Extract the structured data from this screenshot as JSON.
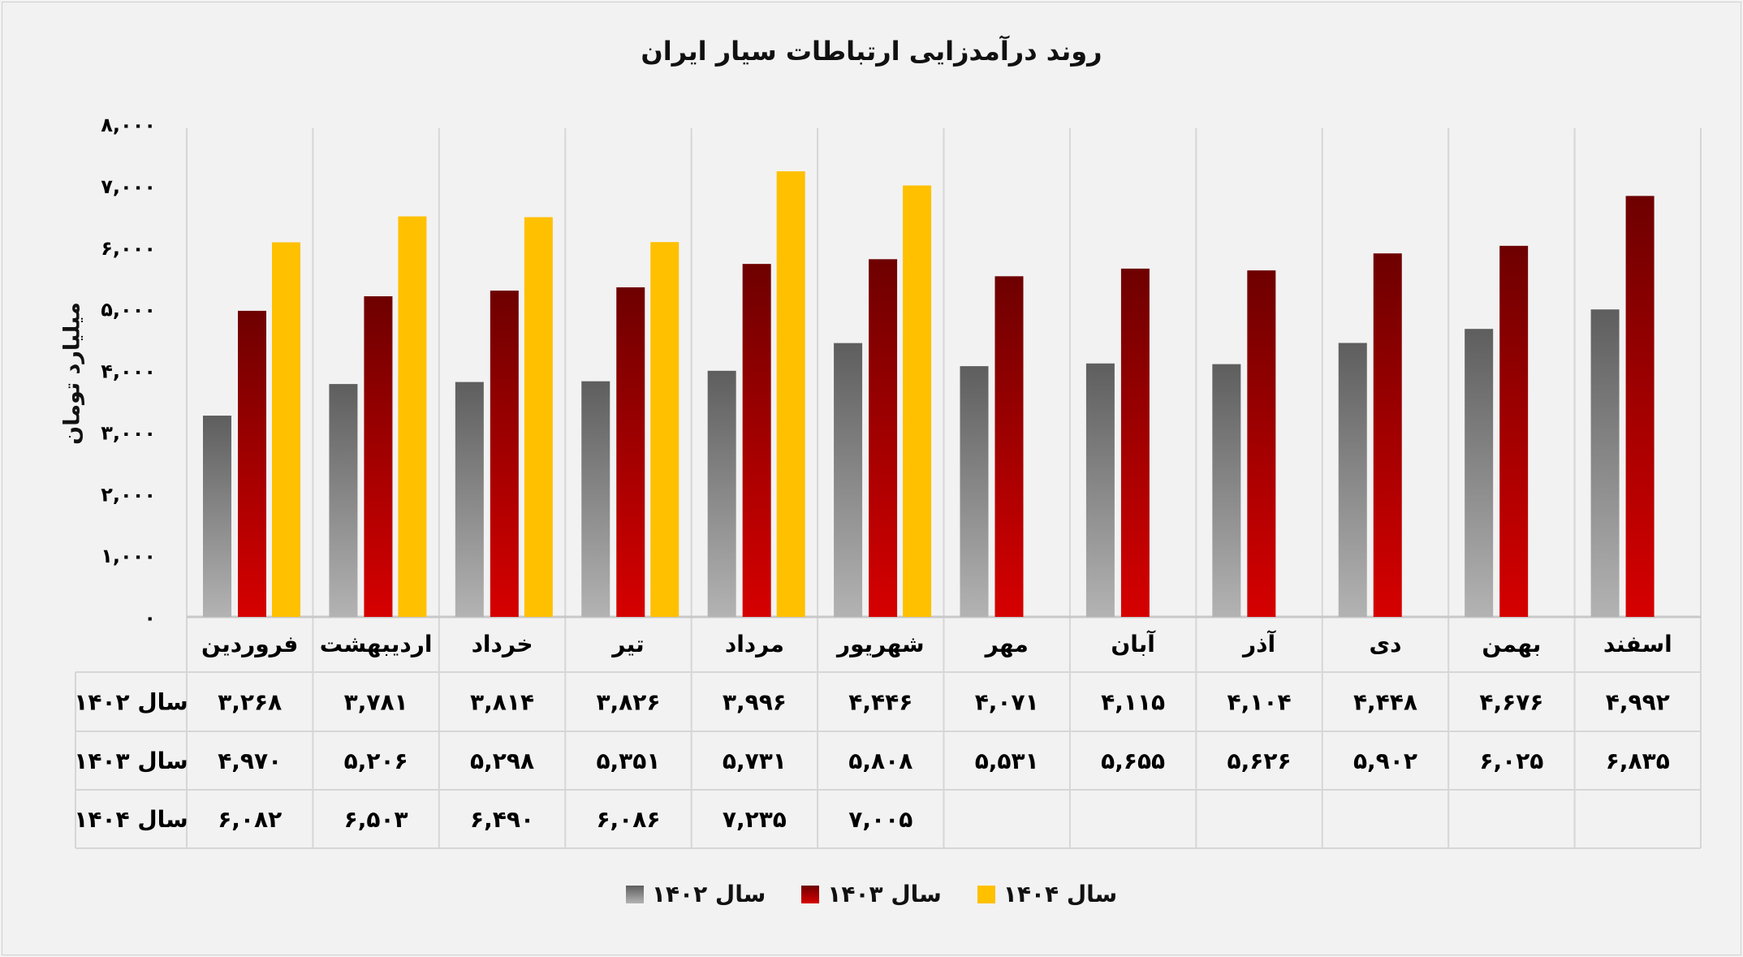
{
  "chart_data": {
    "type": "bar",
    "title": "روند درآمدزایی ارتباطات سیار ایران",
    "ylabel": "میلیارد تومان",
    "xlabel": "",
    "ylim": [
      0,
      8000
    ],
    "grid": true,
    "legend_position": "bottom",
    "y_ticks": [
      0,
      1000,
      2000,
      3000,
      4000,
      5000,
      6000,
      7000,
      8000
    ],
    "y_tick_labels": [
      "۰",
      "۱,۰۰۰",
      "۲,۰۰۰",
      "۳,۰۰۰",
      "۴,۰۰۰",
      "۵,۰۰۰",
      "۶,۰۰۰",
      "۷,۰۰۰",
      "۸,۰۰۰"
    ],
    "categories": [
      "فروردین",
      "اردیبهشت",
      "خرداد",
      "تیر",
      "مرداد",
      "شهریور",
      "مهر",
      "آبان",
      "آذر",
      "دی",
      "بهمن",
      "اسفند"
    ],
    "series": [
      {
        "name": "سال ۱۴۰۲",
        "color": "#8c8c8c",
        "color_top": "#5e5e5e",
        "color_bottom": "#b3b3b3",
        "values": [
          3268,
          3781,
          3814,
          3826,
          3996,
          4446,
          4071,
          4115,
          4104,
          4448,
          4676,
          4992
        ],
        "labels": [
          "۳,۲۶۸",
          "۳,۷۸۱",
          "۳,۸۱۴",
          "۳,۸۲۶",
          "۳,۹۹۶",
          "۴,۴۴۶",
          "۴,۰۷۱",
          "۴,۱۱۵",
          "۴,۱۰۴",
          "۴,۴۴۸",
          "۴,۶۷۶",
          "۴,۹۹۲"
        ]
      },
      {
        "name": "سال ۱۴۰۳",
        "color": "#b00000",
        "color_top": "#6e0000",
        "color_bottom": "#d60000",
        "values": [
          4970,
          5206,
          5298,
          5351,
          5731,
          5808,
          5531,
          5655,
          5626,
          5902,
          6025,
          6835
        ],
        "labels": [
          "۴,۹۷۰",
          "۵,۲۰۶",
          "۵,۲۹۸",
          "۵,۳۵۱",
          "۵,۷۳۱",
          "۵,۸۰۸",
          "۵,۵۳۱",
          "۵,۶۵۵",
          "۵,۶۲۶",
          "۵,۹۰۲",
          "۶,۰۲۵",
          "۶,۸۳۵"
        ]
      },
      {
        "name": "سال ۱۴۰۴",
        "color": "#ffc000",
        "color_top": "#ffc000",
        "color_bottom": "#ffc000",
        "values": [
          6082,
          6503,
          6490,
          6086,
          7235,
          7005,
          null,
          null,
          null,
          null,
          null,
          null
        ],
        "labels": [
          "۶,۰۸۲",
          "۶,۵۰۳",
          "۶,۴۹۰",
          "۶,۰۸۶",
          "۷,۲۳۵",
          "۷,۰۰۵",
          "",
          "",
          "",
          "",
          "",
          ""
        ]
      }
    ]
  }
}
